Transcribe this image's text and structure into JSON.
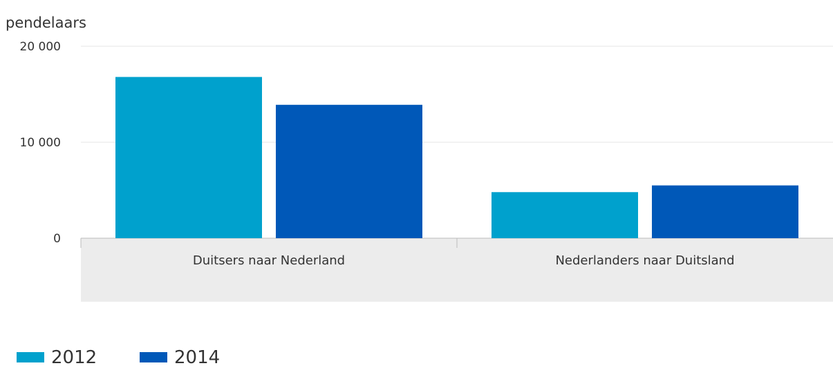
{
  "chart_data": {
    "type": "bar",
    "ylabel": "pendelaars",
    "categories": [
      "Duitsers naar Nederland",
      "Nederlanders naar Duitsland"
    ],
    "series": [
      {
        "name": "2012",
        "values": [
          16800,
          4800
        ],
        "color": "#00a1cd"
      },
      {
        "name": "2014",
        "values": [
          13900,
          5500
        ],
        "color": "#0058b8"
      }
    ],
    "ylim": [
      0,
      20000
    ],
    "yticks": [
      0,
      10000,
      20000
    ],
    "ytick_labels": [
      "0",
      "10 000",
      "20 000"
    ],
    "grid": true,
    "legend_position": "bottom-left"
  }
}
